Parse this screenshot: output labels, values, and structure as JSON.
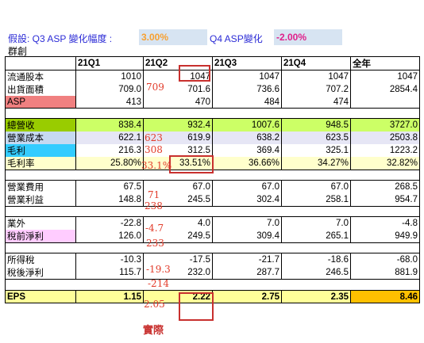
{
  "assumption": {
    "label": "假設: Q3 ASP 變化幅度 :",
    "q3_value": "3.00%",
    "q4_label": "Q4 ASP變化",
    "q4_value": "-2.00%"
  },
  "company": "群創",
  "columns": [
    "",
    "21Q1",
    "21Q2",
    "21Q3",
    "21Q4",
    "全年"
  ],
  "rows": [
    {
      "label": "流通股本",
      "values": [
        "1010",
        "1047",
        "1047",
        "1047",
        "1047"
      ],
      "label_bg": "#ffffff",
      "row_bg": "#ffffff"
    },
    {
      "label": "出貨面積",
      "values": [
        "709.0",
        "701.6",
        "736.6",
        "707.2",
        "2854.4"
      ],
      "label_bg": "#ffffff",
      "row_bg": "#ffffff"
    },
    {
      "label": "ASP",
      "values": [
        "413",
        "470",
        "484",
        "474",
        ""
      ],
      "label_bg": "#f08080",
      "row_bg": "#ffffff"
    },
    {
      "label": "總營收",
      "values": [
        "838.4",
        "932.4",
        "1007.6",
        "948.5",
        "3727.0"
      ],
      "label_bg": "#99cc00",
      "row_bg": "#ccff66"
    },
    {
      "label": "營業成本",
      "values": [
        "622.1",
        "619.9",
        "638.2",
        "623.5",
        "2503.8"
      ],
      "label_bg": "#c6d9f1",
      "row_bg": "#e6e6f5"
    },
    {
      "label": "毛利",
      "values": [
        "216.3",
        "312.5",
        "369.4",
        "325.1",
        "1223.2"
      ],
      "label_bg": "#33ccff",
      "row_bg": "#ffffff"
    },
    {
      "label": "毛利率",
      "values": [
        "25.80%",
        "33.51%",
        "36.66%",
        "34.27%",
        "32.82%"
      ],
      "label_bg": "#ffffcc",
      "row_bg": "#ffffcc"
    },
    {
      "label": "營業費用",
      "values": [
        "67.5",
        "67.0",
        "67.0",
        "67.0",
        "268.5"
      ],
      "label_bg": "#ffffff",
      "row_bg": "#ffffff"
    },
    {
      "label": "營業利益",
      "values": [
        "148.8",
        "245.5",
        "302.4",
        "258.1",
        "954.7"
      ],
      "label_bg": "#ffffff",
      "row_bg": "#ffffff"
    },
    {
      "label": "業外",
      "values": [
        "-22.8",
        "4.0",
        "7.0",
        "7.0",
        "-4.8"
      ],
      "label_bg": "#ffffff",
      "row_bg": "#ffffff"
    },
    {
      "label": "稅前淨利",
      "values": [
        "126.0",
        "249.5",
        "309.4",
        "265.1",
        "949.9"
      ],
      "label_bg": "#ffccff",
      "row_bg": "#ffffff"
    },
    {
      "label": "所得稅",
      "values": [
        "-10.3",
        "-17.5",
        "-21.7",
        "-18.6",
        "-68.0"
      ],
      "label_bg": "#ffffff",
      "row_bg": "#ffffff"
    },
    {
      "label": "稅後淨利",
      "values": [
        "115.7",
        "232.0",
        "287.7",
        "246.5",
        "881.9"
      ],
      "label_bg": "#ffffff",
      "row_bg": "#ffffff"
    },
    {
      "label": "EPS",
      "values": [
        "1.15",
        "2.22",
        "2.75",
        "2.35",
        "8.46"
      ],
      "label_bg": "#ffff99",
      "row_bg": "#ffff99"
    }
  ],
  "handwritten": {
    "shipment": "709",
    "cost": "623",
    "gross": "308",
    "margin": "33.1%",
    "opex": "71",
    "opinc": "238",
    "nonop": "-4.7",
    "pretax": "233",
    "tax": "-19.3",
    "net": "-214",
    "eps": "2.05",
    "actual": "實際"
  },
  "colors": {
    "accent_orange": "#f7a030",
    "q4_pink": "#e0208a",
    "annotation_red": "#e23b2a",
    "total_eps_bg": "#ffc000"
  }
}
